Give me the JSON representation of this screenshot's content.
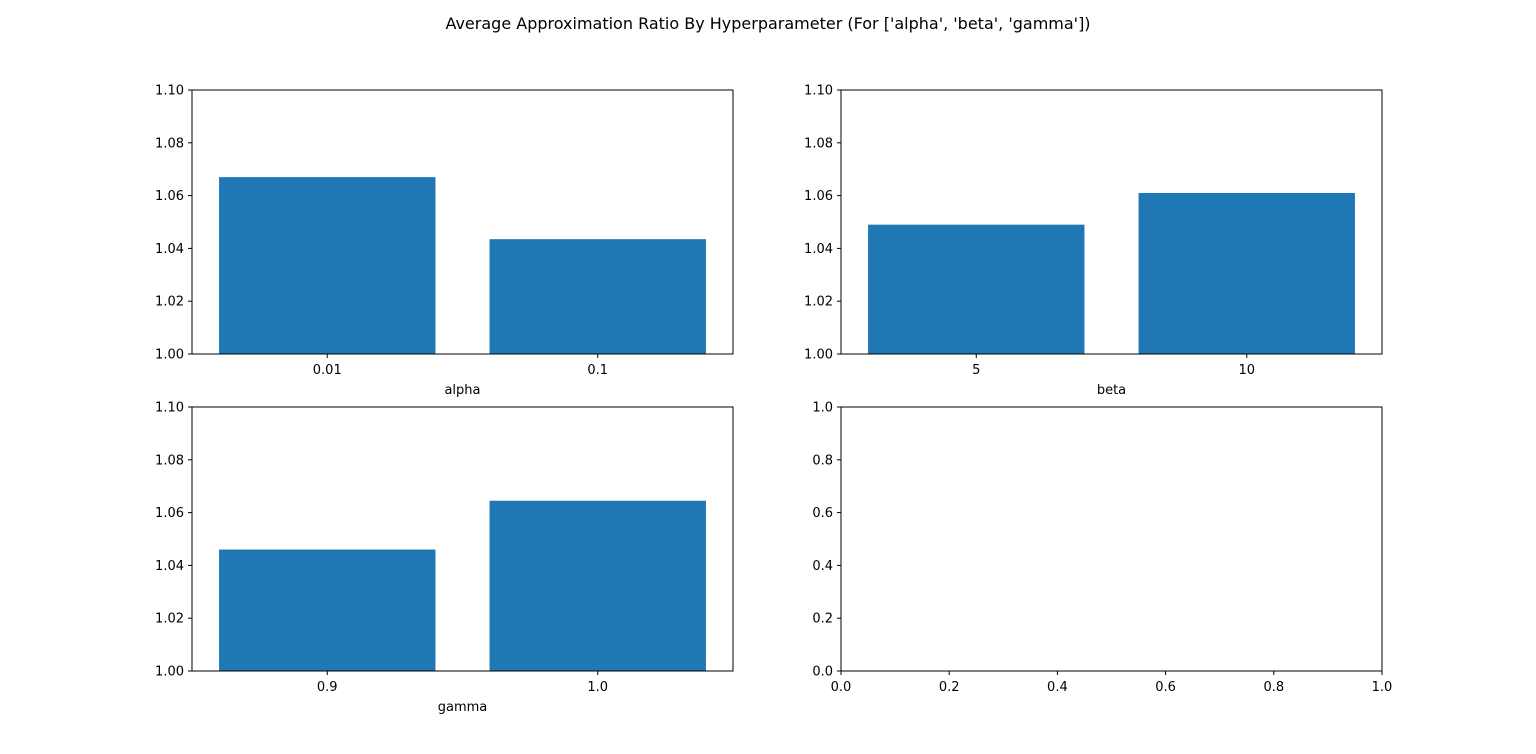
{
  "figure": {
    "title": "Average Approximation Ratio By Hyperparameter (For ['alpha', 'beta', 'gamma'])"
  },
  "chart_data": [
    {
      "type": "bar",
      "categories": [
        "0.01",
        "0.1"
      ],
      "values": [
        1.067,
        1.0435
      ],
      "xlabel": "alpha",
      "ylabel": "",
      "ylim": [
        1.0,
        1.1
      ],
      "yticks": [
        "1.00",
        "1.02",
        "1.04",
        "1.06",
        "1.08",
        "1.10"
      ],
      "color": "#1f77b4",
      "grid": false
    },
    {
      "type": "bar",
      "categories": [
        "5",
        "10"
      ],
      "values": [
        1.049,
        1.061
      ],
      "xlabel": "beta",
      "ylabel": "",
      "ylim": [
        1.0,
        1.1
      ],
      "yticks": [
        "1.00",
        "1.02",
        "1.04",
        "1.06",
        "1.08",
        "1.10"
      ],
      "color": "#1f77b4",
      "grid": false
    },
    {
      "type": "bar",
      "categories": [
        "0.9",
        "1.0"
      ],
      "values": [
        1.046,
        1.0645
      ],
      "xlabel": "gamma",
      "ylabel": "",
      "ylim": [
        1.0,
        1.1
      ],
      "yticks": [
        "1.00",
        "1.02",
        "1.04",
        "1.06",
        "1.08",
        "1.10"
      ],
      "color": "#1f77b4",
      "grid": false
    },
    {
      "type": "bar",
      "categories": [],
      "values": [],
      "xlabel": "",
      "ylabel": "",
      "xlim": [
        0.0,
        1.0
      ],
      "ylim": [
        0.0,
        1.0
      ],
      "xticks": [
        "0.0",
        "0.2",
        "0.4",
        "0.6",
        "0.8",
        "1.0"
      ],
      "yticks": [
        "0.0",
        "0.2",
        "0.4",
        "0.6",
        "0.8",
        "1.0"
      ],
      "grid": false
    }
  ]
}
